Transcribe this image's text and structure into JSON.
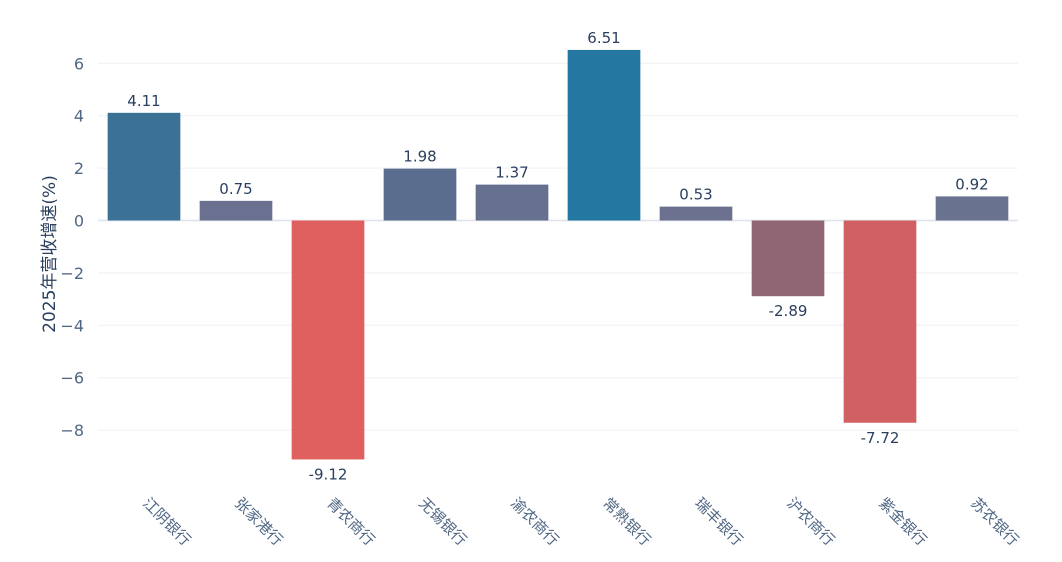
{
  "chart_data": {
    "type": "bar",
    "title": "",
    "xlabel": "",
    "ylabel": "2025年营收增速(%)",
    "categories": [
      "江阴银行",
      "张家港行",
      "青农商行",
      "无锡银行",
      "渝农商行",
      "常熟银行",
      "瑞丰银行",
      "沪农商行",
      "紫金银行",
      "苏农银行"
    ],
    "values": [
      4.11,
      0.75,
      -9.12,
      1.98,
      1.37,
      6.51,
      0.53,
      -2.89,
      -7.72,
      0.92
    ],
    "value_labels": [
      "4.11",
      "0.75",
      "-9.12",
      "1.98",
      "1.37",
      "6.51",
      "0.53",
      "-2.89",
      "-7.72",
      "0.92"
    ],
    "colors": [
      "#3c7196",
      "#6a7190",
      "#e05f5f",
      "#5a6d8e",
      "#65718f",
      "#2377a1",
      "#6b718e",
      "#906674",
      "#d16062",
      "#69728f"
    ],
    "ylim": [
      -9.8,
      7.2
    ],
    "yticks": [
      6,
      4,
      2,
      0,
      -2,
      -4,
      -6,
      -8
    ],
    "ytick_labels": [
      "6",
      "4",
      "2",
      "0",
      "−2",
      "−4",
      "−6",
      "−8"
    ],
    "grid": true,
    "legend": "none"
  }
}
